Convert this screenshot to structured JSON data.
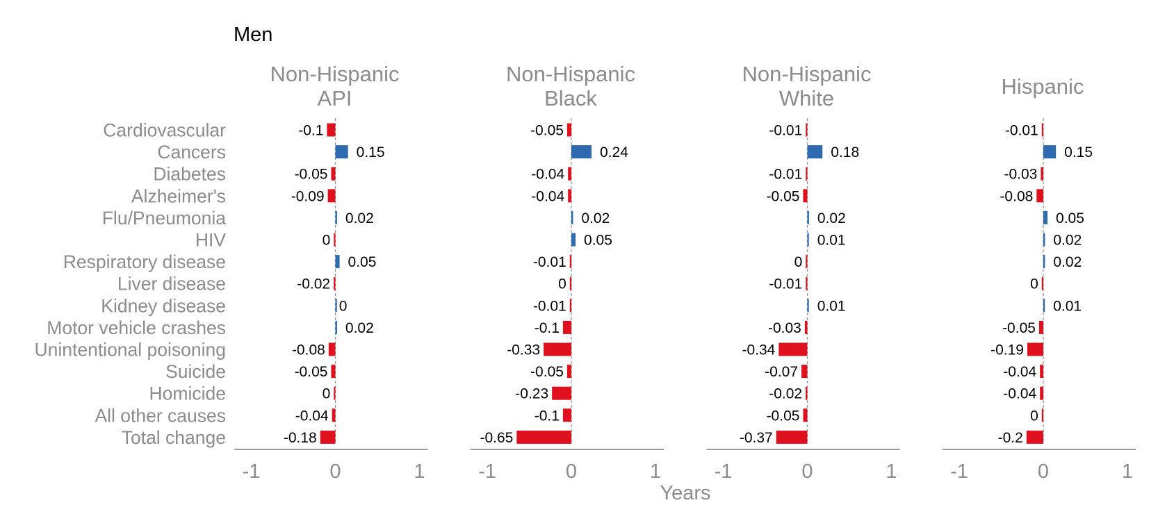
{
  "chart_data": {
    "type": "bar",
    "orientation": "horizontal",
    "title": "Men",
    "xlabel": "Years",
    "xlim": [
      -1.2,
      1.1
    ],
    "xticks": [
      -1,
      0,
      1
    ],
    "xtick_labels": [
      "-1",
      "0",
      "1"
    ],
    "grid": false,
    "colors": {
      "negative": "#e0111e",
      "positive": "#2e6aaf"
    },
    "categories": [
      "Cardiovascular",
      "Cancers",
      "Diabetes",
      "Alzheimer's",
      "Flu/Pneumonia",
      "HIV",
      "Respiratory disease",
      "Liver disease",
      "Kidney disease",
      "Motor vehicle crashes",
      "Unintentional poisoning",
      "Suicide",
      "Homicide",
      "All other causes",
      "Total change"
    ],
    "series": [
      {
        "name": "Non-Hispanic\nAPI",
        "values": [
          -0.1,
          0.15,
          -0.05,
          -0.09,
          0.02,
          0,
          0.05,
          -0.02,
          0,
          0.02,
          -0.08,
          -0.05,
          0,
          -0.04,
          -0.18
        ],
        "signs": [
          "-",
          "+",
          "-",
          "-",
          "+",
          "-",
          "+",
          "-",
          "+",
          "+",
          "-",
          "-",
          "-",
          "-",
          "-"
        ]
      },
      {
        "name": "Non-Hispanic\nBlack",
        "values": [
          -0.05,
          0.24,
          -0.04,
          -0.04,
          0.02,
          0.05,
          -0.01,
          0,
          -0.01,
          -0.1,
          -0.33,
          -0.05,
          -0.23,
          -0.1,
          -0.65
        ],
        "signs": [
          "-",
          "+",
          "-",
          "-",
          "+",
          "+",
          "-",
          "-",
          "-",
          "-",
          "-",
          "-",
          "-",
          "-",
          "-"
        ]
      },
      {
        "name": "Non-Hispanic\nWhite",
        "values": [
          -0.01,
          0.18,
          -0.01,
          -0.05,
          0.02,
          0.01,
          0,
          -0.01,
          0.01,
          -0.03,
          -0.34,
          -0.07,
          -0.02,
          -0.05,
          -0.37
        ],
        "signs": [
          "-",
          "+",
          "-",
          "-",
          "+",
          "+",
          "-",
          "-",
          "+",
          "-",
          "-",
          "-",
          "-",
          "-",
          "-"
        ]
      },
      {
        "name": "Hispanic",
        "values": [
          -0.01,
          0.15,
          -0.03,
          -0.08,
          0.05,
          0.02,
          0.02,
          0,
          0.01,
          -0.05,
          -0.19,
          -0.04,
          -0.04,
          0,
          -0.2
        ],
        "signs": [
          "-",
          "+",
          "-",
          "-",
          "+",
          "+",
          "+",
          "-",
          "+",
          "-",
          "-",
          "-",
          "-",
          "-",
          "-"
        ]
      }
    ]
  }
}
